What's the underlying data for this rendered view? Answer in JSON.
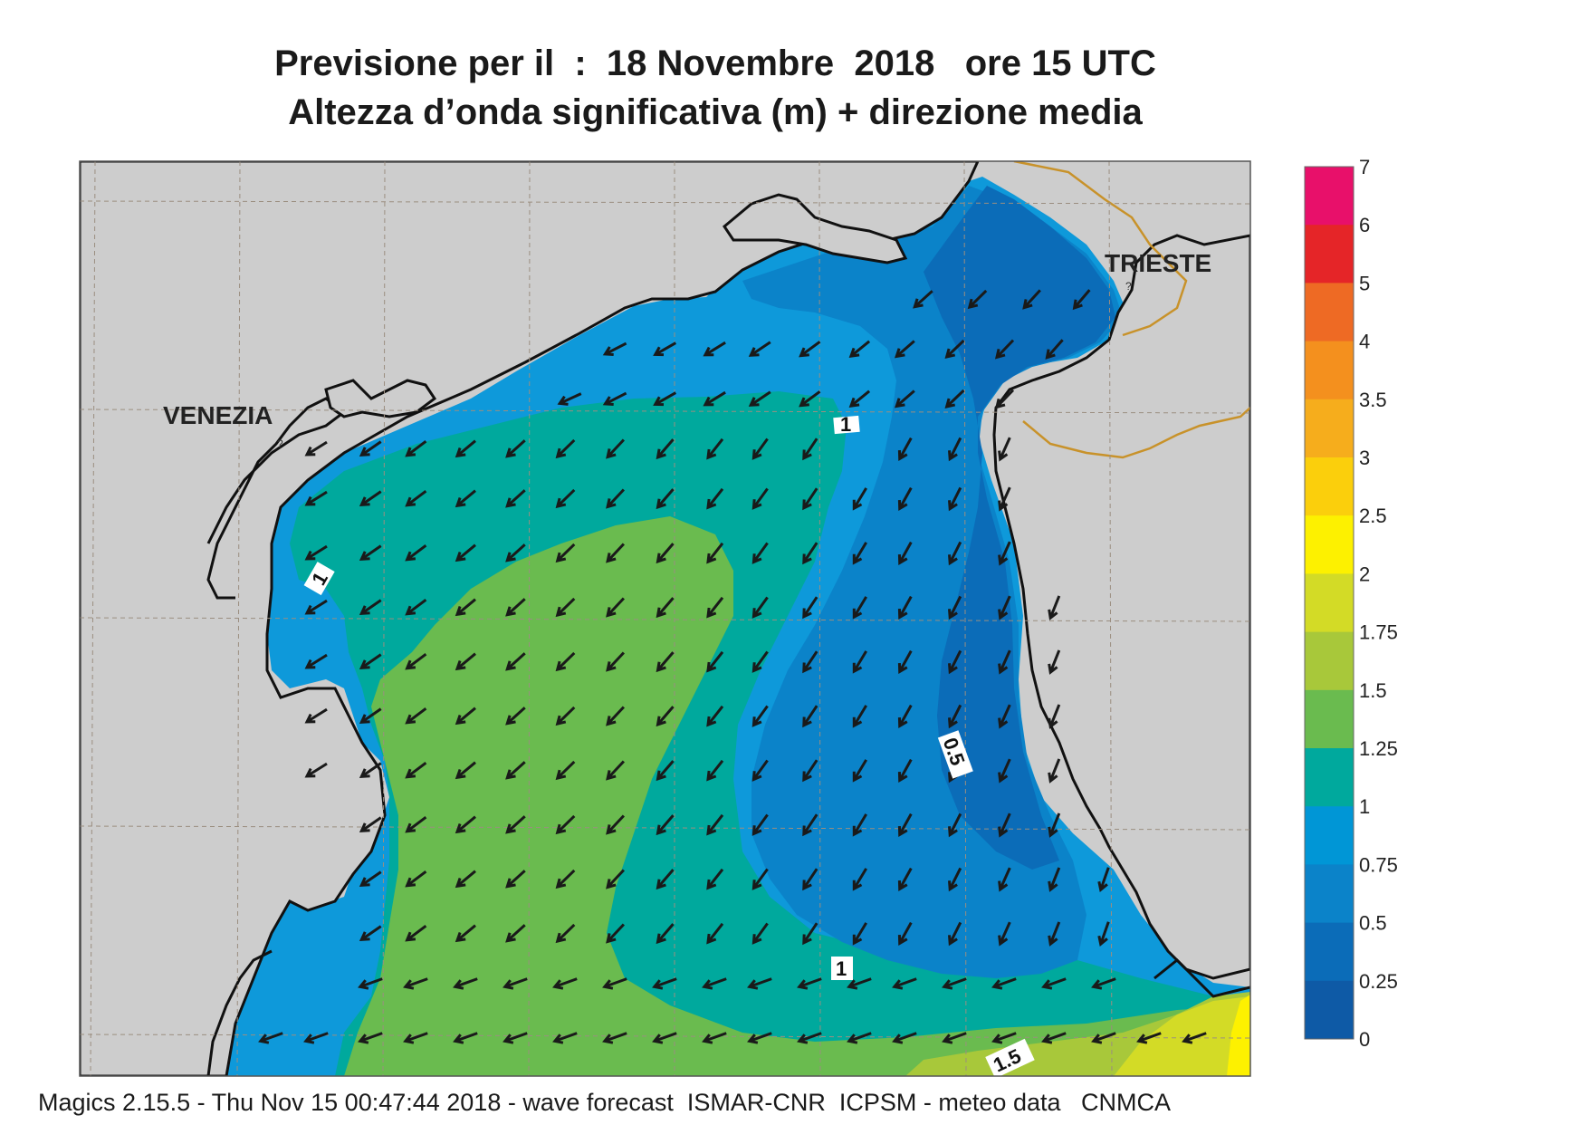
{
  "header": {
    "title_line1": "Previsione per il  :  18 Novembre  2018   ore 15 UTC",
    "title_line2": "Altezza d’onda significativa (m) + direzione media"
  },
  "map": {
    "cities": [
      "VENEZIA",
      "TRIESTE"
    ],
    "contour_labels": [
      "1",
      "1",
      "1",
      "0.5",
      "1.5"
    ],
    "arrow_direction": "south-west",
    "colors": {
      "land": "#cdcdcd",
      "border": "#c8922a"
    }
  },
  "legend": {
    "labels": [
      "7",
      "6",
      "5",
      "4",
      "3.5",
      "3",
      "2.5",
      "2",
      "1.75",
      "1.5",
      "1.25",
      "1",
      "0.75",
      "0.5",
      "0.25",
      "0"
    ],
    "colors": [
      "#e8106a",
      "#e52528",
      "#ee6a24",
      "#f4901e",
      "#f6ad1c",
      "#fbcf0c",
      "#fdf100",
      "#d3db26",
      "#a8c83a",
      "#6abb4f",
      "#00a99d",
      "#0096d6",
      "#0b83c9",
      "#0b6cb8",
      "#0e5aa6"
    ]
  },
  "footer": {
    "text": "Magics 2.15.5 - Thu Nov 15 00:47:44 2018 - wave forecast  ISMAR-CNR  ICPSM - meteo data   CNMCA"
  }
}
